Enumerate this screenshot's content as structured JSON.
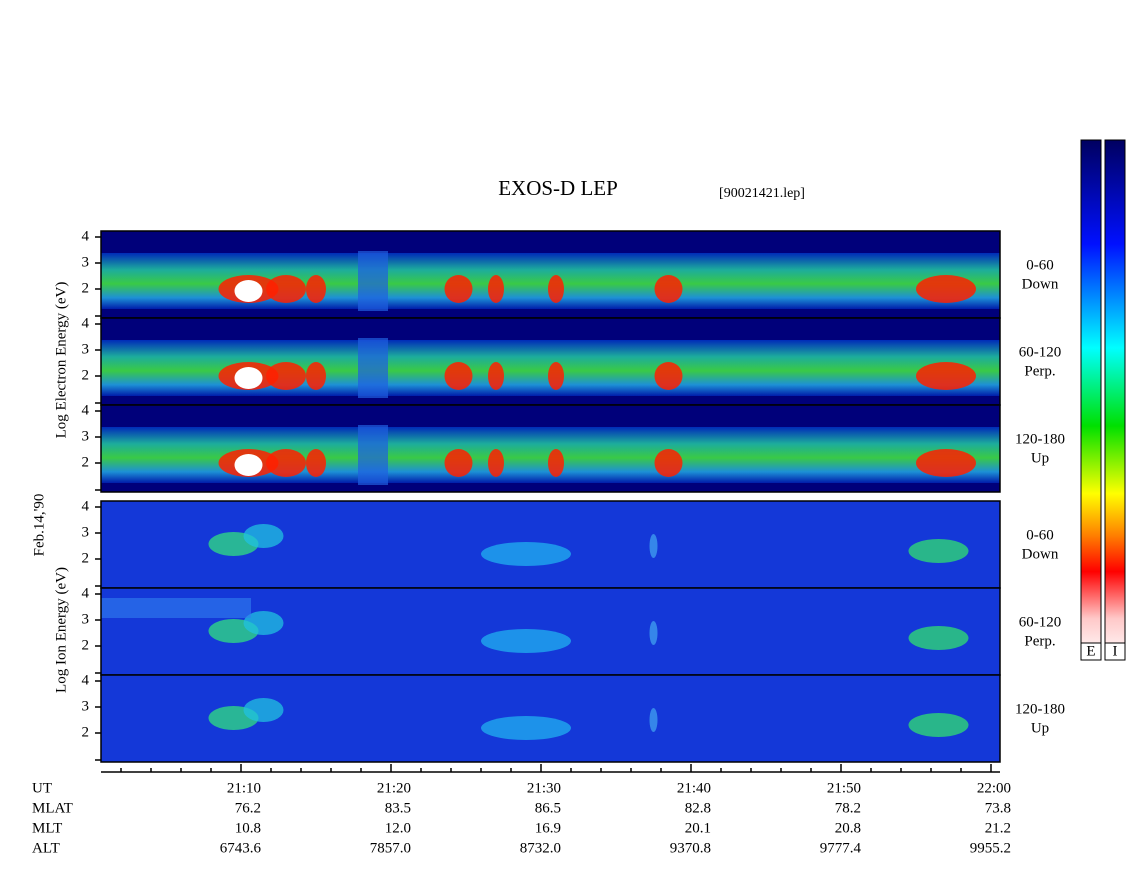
{
  "header": {
    "title": "EXOS-D LEP",
    "file": "[90021421.lep]"
  },
  "electron": {
    "axis_label": "Log Electron Energy (eV)",
    "panels": [
      {
        "pitch": "0-60",
        "direction": "Down",
        "ticks": [
          4,
          3,
          2
        ]
      },
      {
        "pitch": "60-120",
        "direction": "Perp.",
        "ticks": [
          4,
          3,
          2
        ]
      },
      {
        "pitch": "120-180",
        "direction": "Up",
        "ticks": [
          4,
          3,
          2
        ]
      }
    ]
  },
  "date": "Feb.14,'90",
  "ion": {
    "axis_label": "Log Ion Energy (eV)",
    "panels": [
      {
        "pitch": "0-60",
        "direction": "Down",
        "ticks": [
          4,
          3,
          2
        ]
      },
      {
        "pitch": "60-120",
        "direction": "Perp.",
        "ticks": [
          4,
          3,
          2
        ]
      },
      {
        "pitch": "120-180",
        "direction": "Up",
        "ticks": [
          4,
          3,
          2
        ]
      }
    ]
  },
  "axis_table": {
    "rows": [
      {
        "label": "UT",
        "values": [
          "21:10",
          "21:20",
          "21:30",
          "21:40",
          "21:50",
          "22:00"
        ]
      },
      {
        "label": "MLAT",
        "values": [
          "76.2",
          "83.5",
          "86.5",
          "82.8",
          "78.2",
          "73.8"
        ]
      },
      {
        "label": "MLT",
        "values": [
          "10.8",
          "12.0",
          "16.9",
          "20.1",
          "20.8",
          "21.2"
        ]
      },
      {
        "label": "ALT",
        "values": [
          "6743.6",
          "7857.0",
          "8732.0",
          "9370.8",
          "9777.4",
          "9955.2"
        ]
      }
    ]
  },
  "colorbar": {
    "labels": [
      "E",
      "I"
    ]
  }
}
